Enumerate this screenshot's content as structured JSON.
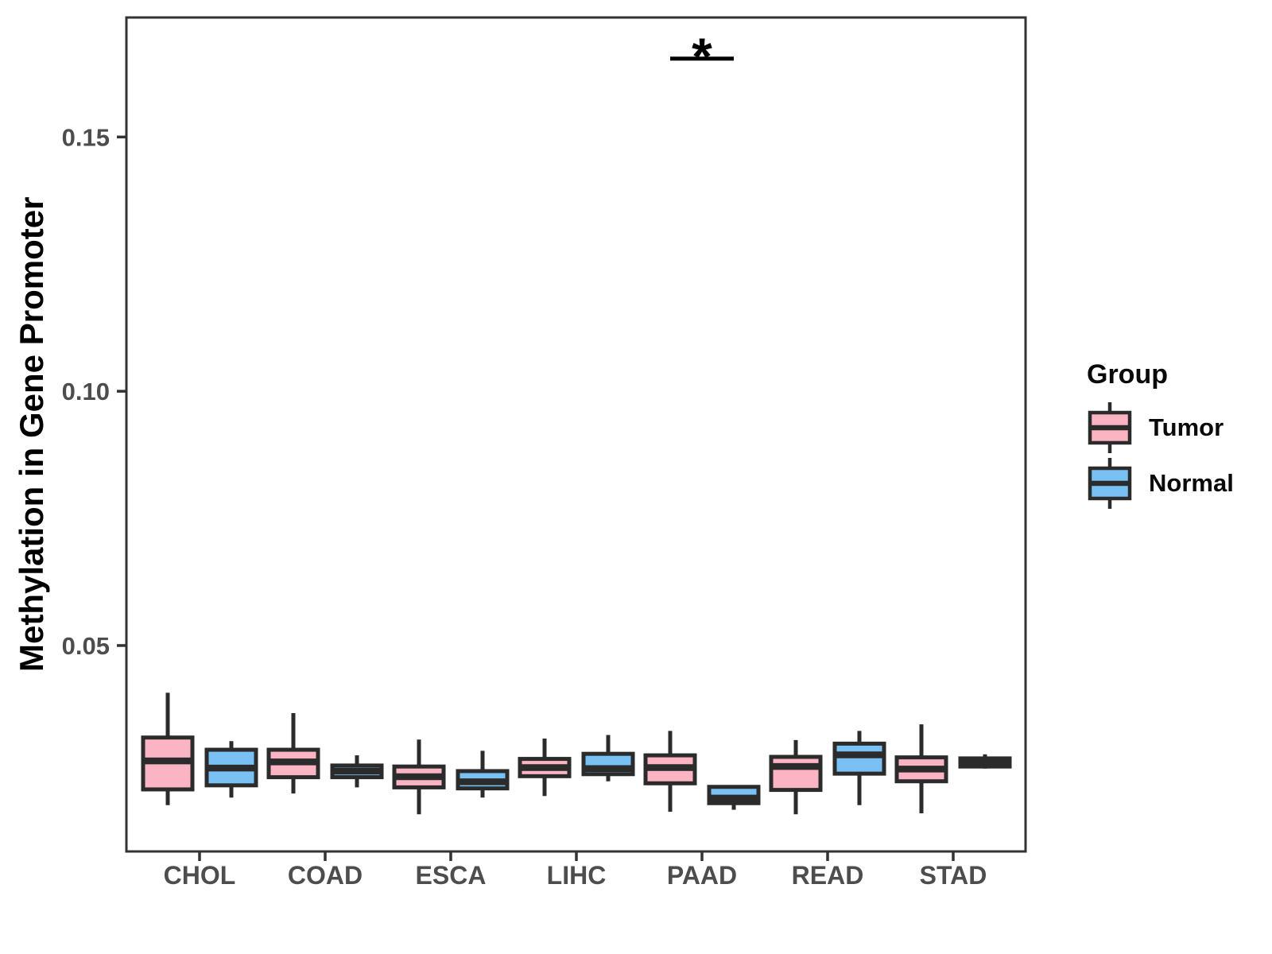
{
  "chart_data": {
    "type": "boxplot",
    "title": "",
    "xlabel": "",
    "ylabel": "Methylation in Gene Promoter",
    "categories": [
      "CHOL",
      "COAD",
      "ESCA",
      "LIHC",
      "PAAD",
      "READ",
      "STAD"
    ],
    "y_ticks": [
      {
        "value": 0.05,
        "label": "0.05"
      },
      {
        "value": 0.1,
        "label": "0.10"
      },
      {
        "value": 0.15,
        "label": "0.15"
      }
    ],
    "ylim": [
      0.0095,
      0.1735
    ],
    "grid": false,
    "legend_position": "right",
    "legend": {
      "title": "Group",
      "entries": [
        {
          "label": "Tumor",
          "color": "#FBB4C3"
        },
        {
          "label": "Normal",
          "color": "#79C1F3"
        }
      ]
    },
    "series": [
      {
        "name": "Tumor",
        "color": "#FBB4C3",
        "boxes": [
          {
            "category": "CHOL",
            "whisker_low": 0.0186,
            "q1": 0.0217,
            "median": 0.0273,
            "q3": 0.0319,
            "whisker_high": 0.0407
          },
          {
            "category": "COAD",
            "whisker_low": 0.0209,
            "q1": 0.0241,
            "median": 0.0271,
            "q3": 0.0295,
            "whisker_high": 0.0367
          },
          {
            "category": "ESCA",
            "whisker_low": 0.0168,
            "q1": 0.0221,
            "median": 0.0242,
            "q3": 0.0262,
            "whisker_high": 0.0315
          },
          {
            "category": "LIHC",
            "whisker_low": 0.0204,
            "q1": 0.0243,
            "median": 0.026,
            "q3": 0.0277,
            "whisker_high": 0.0317
          },
          {
            "category": "PAAD",
            "whisker_low": 0.0173,
            "q1": 0.0229,
            "median": 0.026,
            "q3": 0.0284,
            "whisker_high": 0.0332
          },
          {
            "category": "READ",
            "whisker_low": 0.0168,
            "q1": 0.0216,
            "median": 0.0262,
            "q3": 0.0281,
            "whisker_high": 0.0314
          },
          {
            "category": "STAD",
            "whisker_low": 0.017,
            "q1": 0.0233,
            "median": 0.0257,
            "q3": 0.028,
            "whisker_high": 0.0345
          }
        ]
      },
      {
        "name": "Normal",
        "color": "#79C1F3",
        "boxes": [
          {
            "category": "CHOL",
            "whisker_low": 0.0201,
            "q1": 0.0225,
            "median": 0.0259,
            "q3": 0.0295,
            "whisker_high": 0.0312
          },
          {
            "category": "COAD",
            "whisker_low": 0.0221,
            "q1": 0.0241,
            "median": 0.0253,
            "q3": 0.0264,
            "whisker_high": 0.0284
          },
          {
            "category": "ESCA",
            "whisker_low": 0.0201,
            "q1": 0.0219,
            "median": 0.0232,
            "q3": 0.0253,
            "whisker_high": 0.0293
          },
          {
            "category": "LIHC",
            "whisker_low": 0.0233,
            "q1": 0.0247,
            "median": 0.0258,
            "q3": 0.0287,
            "whisker_high": 0.0324
          },
          {
            "category": "PAAD",
            "whisker_low": 0.0177,
            "q1": 0.019,
            "median": 0.02,
            "q3": 0.0222,
            "whisker_high": 0.0224
          },
          {
            "category": "READ",
            "whisker_low": 0.0186,
            "q1": 0.0248,
            "median": 0.0285,
            "q3": 0.0307,
            "whisker_high": 0.0332
          },
          {
            "category": "STAD",
            "whisker_low": 0.0258,
            "q1": 0.0262,
            "median": 0.027,
            "q3": 0.0278,
            "whisker_high": 0.0286
          }
        ]
      }
    ],
    "annotations": [
      {
        "type": "significance",
        "label": "*",
        "category": "PAAD",
        "spans": [
          "Tumor",
          "Normal"
        ],
        "y": 0.1654
      }
    ],
    "styles": {
      "box_stroke": "#2B2B2B",
      "frame_color": "#333333",
      "tick_label_color": "#4D4D4D",
      "axis_title_color": "#000000"
    }
  }
}
